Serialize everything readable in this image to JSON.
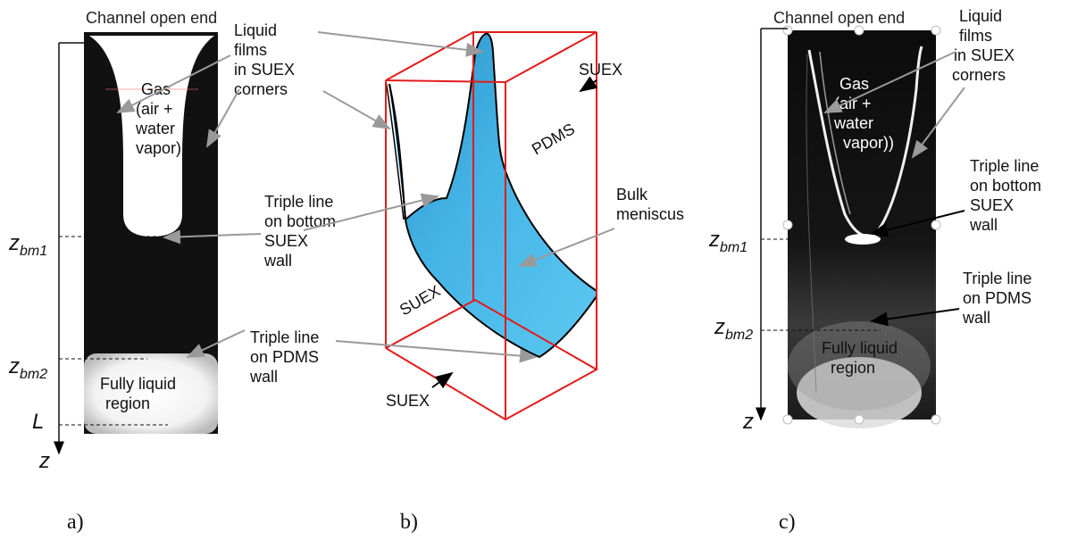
{
  "panel_a": {
    "channel_open_end": "Channel open end",
    "liquid_films": [
      "Liquid",
      "films",
      "in SUEX",
      "corners"
    ],
    "gas": [
      "Gas",
      "(air +",
      "water",
      "vapor)"
    ],
    "triple_line_bottom": [
      "Triple line",
      "on bottom",
      "SUEX",
      "wall"
    ],
    "triple_line_pdms": [
      "Triple line",
      "on PDMS",
      "wall"
    ],
    "fully_liquid": [
      "Fully liquid",
      "region"
    ],
    "z_bm1": {
      "sym": "z",
      "sub": "bm1"
    },
    "z_bm2": {
      "sym": "z",
      "sub": "bm2"
    },
    "L": "L",
    "z": "z",
    "panel_label": "a)"
  },
  "panel_b": {
    "suex_top": "SUEX",
    "pdms": "PDMS",
    "bulk_meniscus": [
      "Bulk",
      "meniscus"
    ],
    "suex_side": "SUEX",
    "suex_bottom": "SUEX",
    "panel_label": "b)",
    "colors": {
      "box": "#e21b1b",
      "meniscus": "#3aaee0"
    }
  },
  "panel_c": {
    "channel_open_end": "Channel open end",
    "liquid_films": [
      "Liquid",
      "films",
      "in SUEX",
      "corners"
    ],
    "gas": [
      "Gas",
      "(air +",
      "water",
      "vapor))"
    ],
    "triple_line_bottom": [
      "Triple line",
      "on bottom",
      "SUEX",
      "wall"
    ],
    "triple_line_pdms": [
      "Triple line",
      "on PDMS",
      "wall"
    ],
    "fully_liquid": [
      "Fully liquid",
      "region"
    ],
    "z_bm1": {
      "sym": "z",
      "sub": "bm1"
    },
    "z_bm2": {
      "sym": "z",
      "sub": "bm2"
    },
    "z": "z",
    "panel_label": "c)"
  }
}
